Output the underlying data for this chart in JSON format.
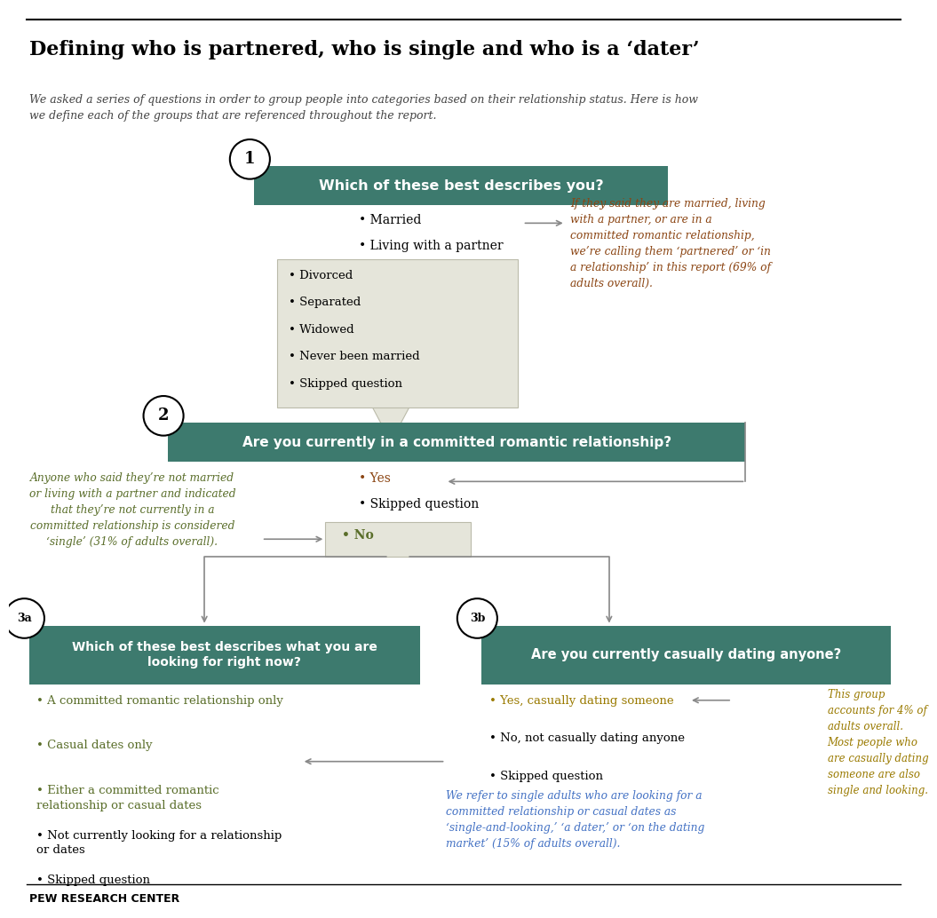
{
  "title": "Defining who is partnered, who is single and who is a ‘dater’",
  "subtitle": "We asked a series of questions in order to group people into categories based on their relationship status. Here is how\nwe define each of the groups that are referenced throughout the report.",
  "teal_color": "#3d7a6e",
  "brown_color": "#8B4513",
  "olive_color": "#5a6e2a",
  "gold_color": "#9A7A00",
  "blue_color": "#4472C4",
  "light_gray": "#e5e5da",
  "arrow_gray": "#888888",
  "q1_text": "Which of these best describes you?",
  "q2_text": "Are you currently in a committed romantic relationship?",
  "q3a_text": "Which of these best describes what you are\nlooking for right now?",
  "q3b_text": "Are you currently casually dating anyone?",
  "married_items": [
    "Married",
    "Living with a partner"
  ],
  "box_items": [
    "Divorced",
    "Separated",
    "Widowed",
    "Never been married",
    "Skipped question"
  ],
  "yes_item": "Yes",
  "skipped_item": "Skipped question",
  "no_item": "No",
  "q3a_items": [
    "A committed romantic relationship only",
    "Casual dates only",
    "Either a committed romantic\nrelationship or casual dates",
    "Not currently looking for a relationship\nor dates",
    "Skipped question"
  ],
  "q3b_items": [
    "Yes, casually dating someone",
    "No, not casually dating anyone",
    "Skipped question"
  ],
  "annotation_partnered": "If they said they are married, living\nwith a partner, or are in a\ncommitted romantic relationship,\nwe’re calling them ‘partnered’ or ‘in\na relationship’ in this report (69% of\nadults overall).",
  "annotation_single": "Anyone who said they’re not married\nor living with a partner and indicated\nthat they’re not currently in a\ncommitted relationship is considered\n‘single’ (31% of adults overall).",
  "annotation_dater_center": "We refer to single adults who are looking for a\ncommitted relationship or casual dates as\n‘single-and-looking,’ ‘a dater,’ or ‘on the dating\nmarket’ (15% of adults overall).",
  "annotation_dater_right": "This group\naccounts for 4% of\nadults overall.\nMost people who\nare casually dating\nsomeone are also\nsingle and looking.",
  "footer": "PEW RESEARCH CENTER",
  "background_color": "#ffffff"
}
